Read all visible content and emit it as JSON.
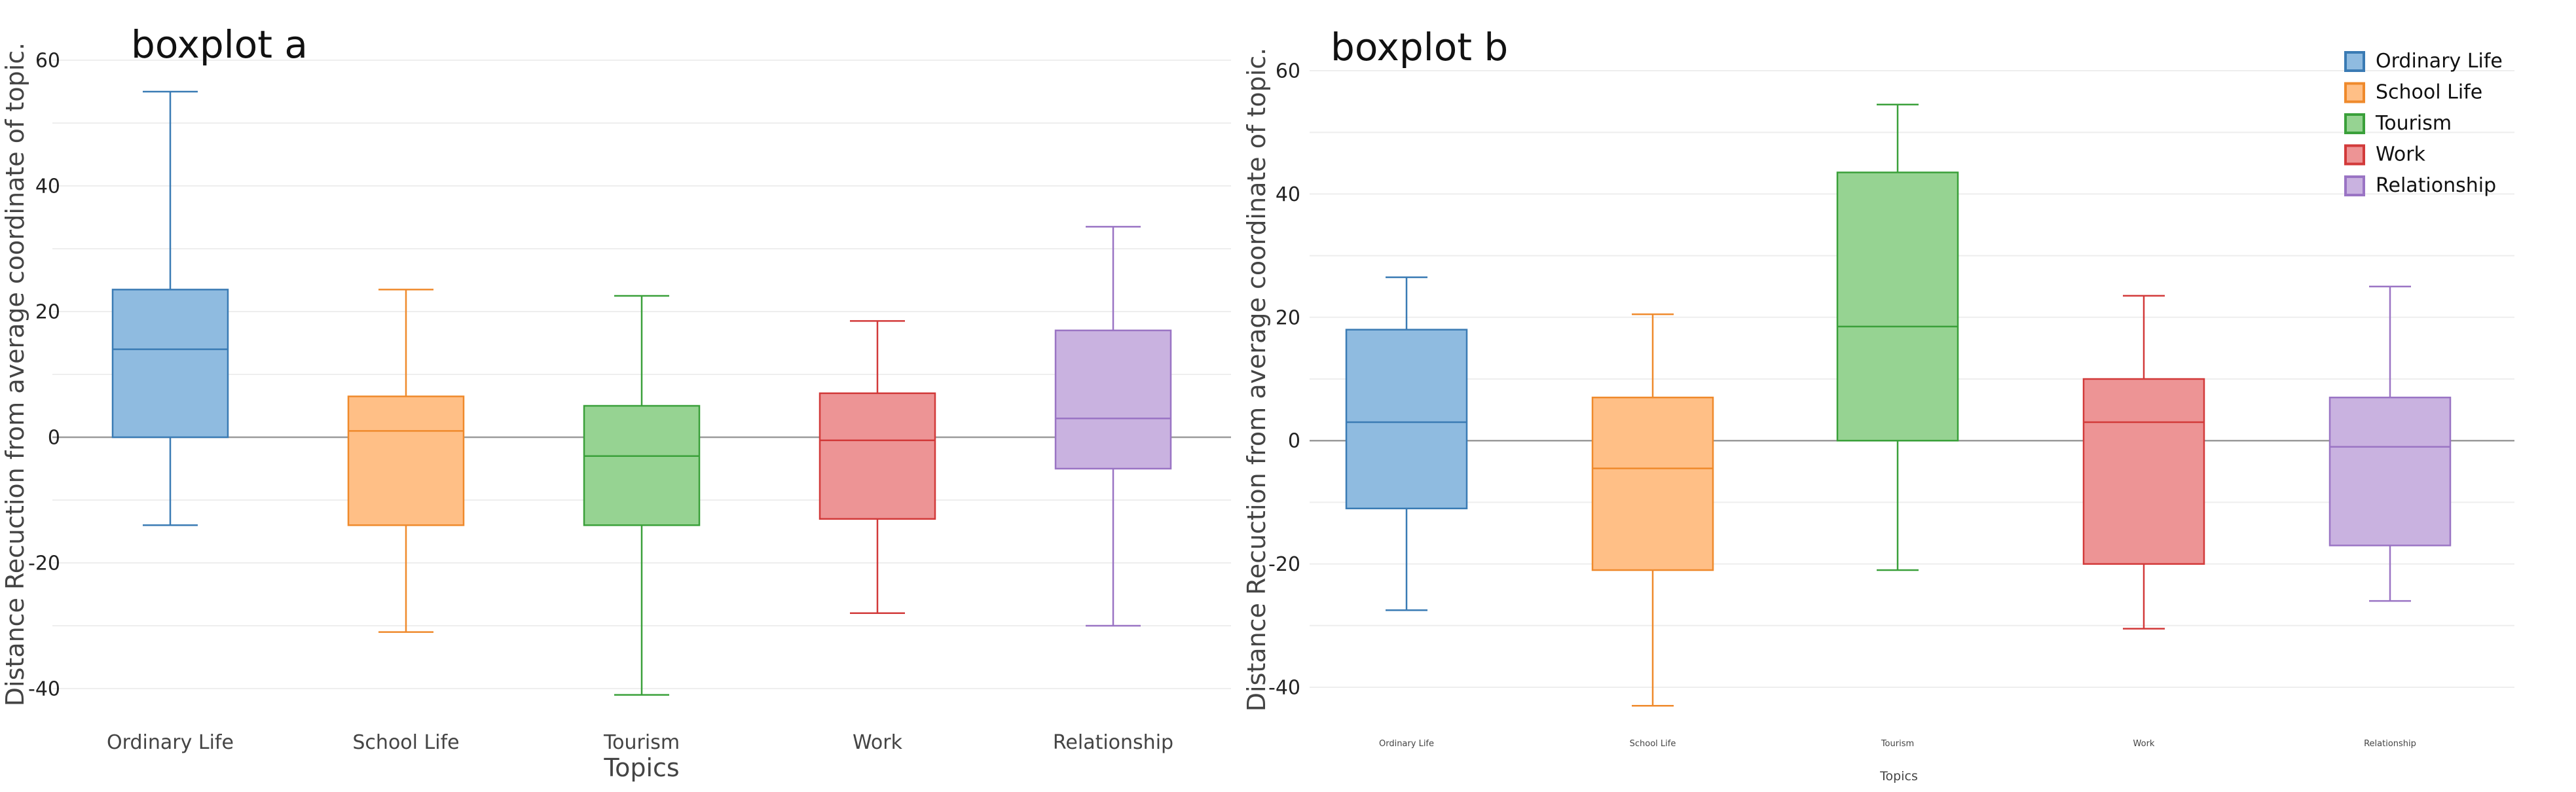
{
  "chart_data": [
    {
      "type": "box",
      "title": "boxplot a",
      "xlabel": "Topics",
      "ylabel": "Distance Recuction from average coordinate of topic.",
      "ylim": [
        -44,
        60
      ],
      "yticks": [
        60,
        40,
        20,
        0,
        -20,
        -40
      ],
      "categories": [
        "Ordinary Life",
        "School Life",
        "Tourism",
        "Work",
        "Relationship"
      ],
      "boxes": [
        {
          "category": "Ordinary Life",
          "whisker_low": -14,
          "q1": 0,
          "median": 14,
          "q3": 23.5,
          "whisker_high": 55
        },
        {
          "category": "School Life",
          "whisker_low": -31,
          "q1": -14,
          "median": 1,
          "q3": 6.5,
          "whisker_high": 23.5
        },
        {
          "category": "Tourism",
          "whisker_low": -41,
          "q1": -14,
          "median": -3,
          "q3": 5,
          "whisker_high": 22.5
        },
        {
          "category": "Work",
          "whisker_low": -28,
          "q1": -13,
          "median": -0.5,
          "q3": 7,
          "whisker_high": 18.5
        },
        {
          "category": "Relationship",
          "whisker_low": -30,
          "q1": -5,
          "median": 3,
          "q3": 17,
          "whisker_high": 33.5
        }
      ],
      "grid": true,
      "zero_line": true
    },
    {
      "type": "box",
      "title": "boxplot b",
      "xlabel": "Topics",
      "ylabel": "Distance Recuction from average coordinate of topic.",
      "ylim": [
        -46,
        64
      ],
      "yticks": [
        60,
        40,
        20,
        0,
        -20,
        -40
      ],
      "categories": [
        "Ordinary Life",
        "School Life",
        "Tourism",
        "Work",
        "Relationship"
      ],
      "boxes": [
        {
          "category": "Ordinary Life",
          "whisker_low": -27.5,
          "q1": -11,
          "median": 3,
          "q3": 18,
          "whisker_high": 26.5
        },
        {
          "category": "School Life",
          "whisker_low": -43,
          "q1": -21,
          "median": -4.5,
          "q3": 7,
          "whisker_high": 20.5
        },
        {
          "category": "Tourism",
          "whisker_low": -21,
          "q1": 0,
          "median": 18.5,
          "q3": 43.5,
          "whisker_high": 54.5
        },
        {
          "category": "Work",
          "whisker_low": -30.5,
          "q1": -20,
          "median": 3,
          "q3": 10,
          "whisker_high": 23.5
        },
        {
          "category": "Relationship",
          "whisker_low": -26,
          "q1": -17,
          "median": -1,
          "q3": 7,
          "whisker_high": 25
        }
      ],
      "grid": true,
      "zero_line": true,
      "legend": {
        "position": "top-right",
        "entries": [
          "Ordinary Life",
          "School Life",
          "Tourism",
          "Work",
          "Relationship"
        ]
      }
    }
  ],
  "colors": {
    "Ordinary Life": {
      "fill": "#8fbbe0",
      "stroke": "#3a7bb4"
    },
    "School Life": {
      "fill": "#ffbf86",
      "stroke": "#ef8a2c"
    },
    "Tourism": {
      "fill": "#96d392",
      "stroke": "#3aa03a"
    },
    "Work": {
      "fill": "#ed9495",
      "stroke": "#d23a3a"
    },
    "Relationship": {
      "fill": "#c9b2e0",
      "stroke": "#9a74c4"
    },
    "grid": "#eeeeee",
    "zero_line": "#9a9a9a",
    "text": "#333333"
  }
}
